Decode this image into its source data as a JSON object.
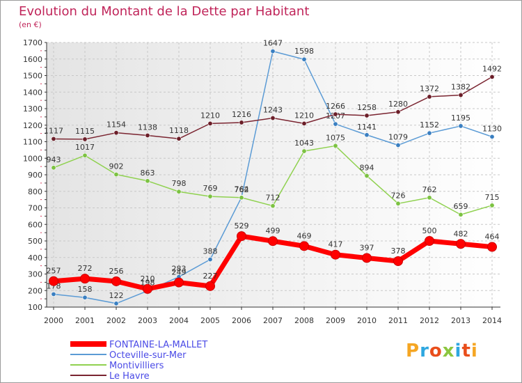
{
  "header": {
    "title": "Evolution du Montant de la Dette par Habitant",
    "unit": "(en €)"
  },
  "brand": {
    "letters": [
      "P",
      "r",
      "o",
      "x",
      "i",
      "t",
      "i"
    ],
    "colors": [
      "#f5a623",
      "#2ea7e0",
      "#e94e1b",
      "#8cc63f",
      "#2ea7e0",
      "#e94e1b",
      "#f5a623"
    ]
  },
  "chart_data": {
    "type": "line",
    "x": [
      "2000",
      "2001",
      "2002",
      "2003",
      "2004",
      "2005",
      "2006",
      "2007",
      "2008",
      "2009",
      "2010",
      "2011",
      "2012",
      "2013",
      "2014"
    ],
    "ylim": [
      100,
      1700
    ],
    "yticks": [
      100,
      200,
      300,
      400,
      500,
      600,
      700,
      800,
      900,
      1000,
      1100,
      1200,
      1300,
      1400,
      1500,
      1600,
      1700
    ],
    "grid": true,
    "legend_position": "bottom-left",
    "series": [
      {
        "name": "Octeville-sur-Mer",
        "color": "#5b9bd5",
        "marker": "#3a7fc1",
        "values": [
          178,
          158,
          122,
          198,
          283,
          388,
          764,
          1647,
          1598,
          1207,
          1141,
          1079,
          1152,
          1195,
          1130
        ]
      },
      {
        "name": "Montivilliers",
        "color": "#8fd14f",
        "marker": "#7cc242",
        "values": [
          943,
          1017,
          902,
          863,
          798,
          769,
          762,
          712,
          1043,
          1075,
          894,
          726,
          762,
          659,
          715
        ]
      },
      {
        "name": "Le Havre",
        "color": "#7a2430",
        "marker": "#6b1e28",
        "values": [
          1117,
          1115,
          1154,
          1138,
          1118,
          1210,
          1216,
          1243,
          1210,
          1266,
          1258,
          1280,
          1372,
          1382,
          1492
        ]
      },
      {
        "name": "FONTAINE-LA-MALLET",
        "color": "#ff0000",
        "marker": "#ff0000",
        "values": [
          257,
          272,
          256,
          210,
          249,
          227,
          529,
          499,
          469,
          417,
          397,
          378,
          500,
          482,
          464
        ]
      }
    ],
    "legend_order": [
      "FONTAINE-LA-MALLET",
      "Octeville-sur-Mer",
      "Montivilliers",
      "Le Havre"
    ]
  }
}
